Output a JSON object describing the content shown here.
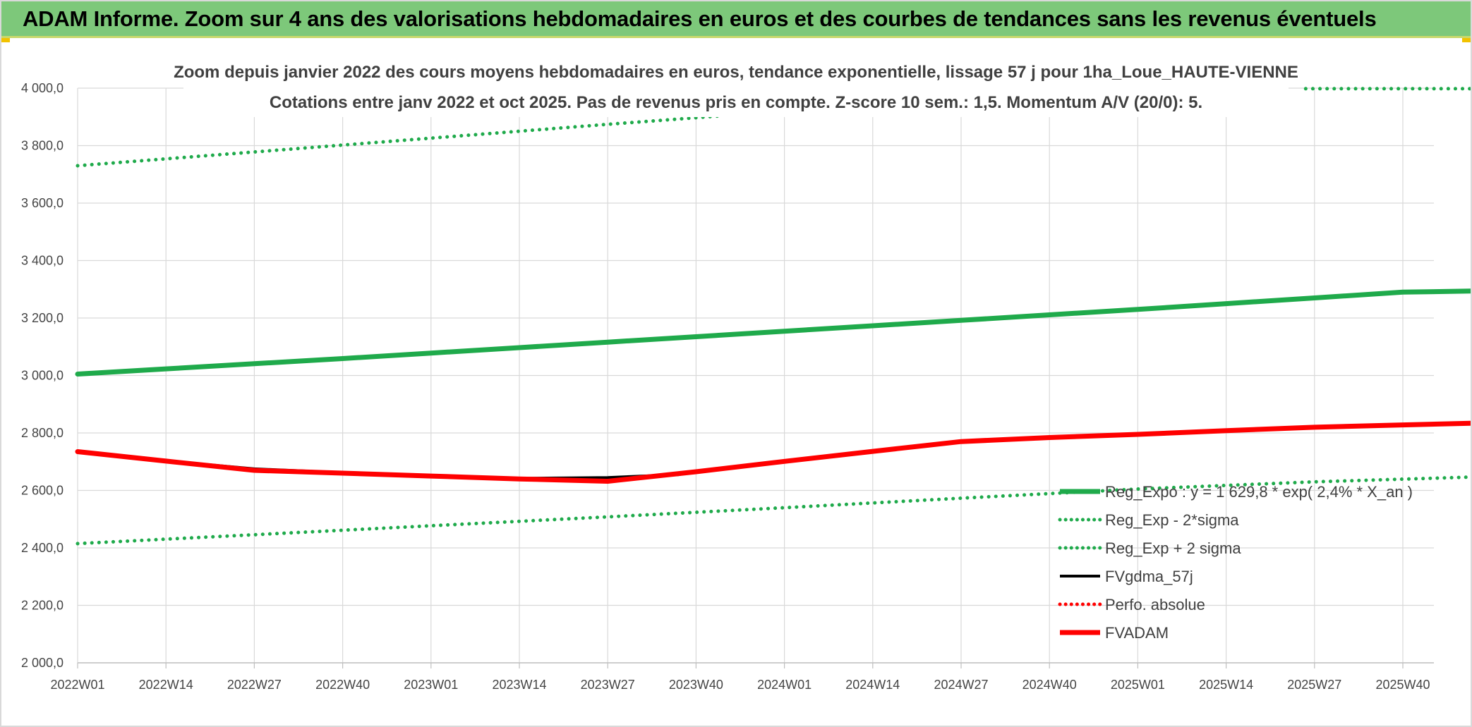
{
  "header": {
    "title": "ADAM Informe. Zoom sur 4 ans des valorisations hebdomadaires en euros et des courbes de tendances sans les revenus éventuels"
  },
  "colors": {
    "header_bg": "#7dc87a",
    "reg_expo": "#1faa4b",
    "fvgdma": "#000000",
    "fvadam": "#ff0000",
    "grid": "#d9d9d9"
  },
  "chart_data": {
    "type": "line",
    "title_line1": "Zoom depuis janvier 2022 des cours moyens hebdomadaires en euros, tendance exponentielle, lissage 57 j pour 1ha_Loue_HAUTE-VIENNE",
    "title_line2": "Cotations entre janv 2022 et oct 2025. Pas de revenus pris en compte. Z-score 10 sem.: 1,5. Momentum A/V (20/0): 5.",
    "ylim": [
      2000,
      4000
    ],
    "yticks": [
      2000,
      2200,
      2400,
      2600,
      2800,
      3000,
      3200,
      3400,
      3600,
      3800,
      4000
    ],
    "ytick_labels": [
      "2 000,0",
      "2 200,0",
      "2 400,0",
      "2 600,0",
      "2 800,0",
      "3 000,0",
      "3 200,0",
      "3 400,0",
      "3 600,0",
      "3 800,0",
      "4 000,0"
    ],
    "categories": [
      "2022W01",
      "2022W14",
      "2022W27",
      "2022W40",
      "2023W01",
      "2023W14",
      "2023W27",
      "2023W40",
      "2024W01",
      "2024W14",
      "2024W27",
      "2024W40",
      "2025W01",
      "2025W14",
      "2025W27",
      "2025W40"
    ],
    "x_extent": 16.37,
    "series": [
      {
        "name": "Reg_Expo : y = 1 629,8 * exp( 2,4% *  X_an )",
        "style": "solid-thick",
        "color": "#1faa4b",
        "x": [
          0,
          1,
          2,
          3,
          4,
          5,
          6,
          7,
          8,
          9,
          10,
          11,
          12,
          13,
          14,
          15,
          16.37
        ],
        "y": [
          3005,
          3023,
          3041,
          3059,
          3078,
          3097,
          3116,
          3135,
          3154,
          3173,
          3192,
          3211,
          3230,
          3250,
          3270,
          3290,
          3297
        ]
      },
      {
        "name": "Reg_Exp - 2*sigma",
        "style": "dotted",
        "color": "#1faa4b",
        "x": [
          0,
          2,
          4,
          6,
          8,
          10,
          12,
          14,
          16.37
        ],
        "y": [
          2415,
          2446,
          2477,
          2508,
          2540,
          2573,
          2605,
          2630,
          2652
        ]
      },
      {
        "name": "Reg_Exp + 2 sigma",
        "style": "dotted",
        "color": "#1faa4b",
        "x": [
          0,
          2,
          4,
          6,
          7.3
        ],
        "y": [
          3730,
          3778,
          3826,
          3874,
          3904
        ],
        "x2": [
          13.9,
          16.37
        ],
        "y2": [
          3998,
          3998
        ]
      },
      {
        "name": "FVgdma_57j",
        "style": "solid",
        "color": "#000000",
        "x": [
          0,
          1,
          2,
          3,
          4,
          5,
          6,
          6.8,
          7,
          8,
          9,
          10,
          11,
          12,
          13,
          14,
          15,
          16.37
        ],
        "y": [
          2735,
          2703,
          2675,
          2662,
          2652,
          2642,
          2645,
          2655,
          2666,
          2701,
          2736,
          2770,
          2784,
          2795,
          2808,
          2820,
          2828,
          2838
        ]
      },
      {
        "name": "Perfo. absolue",
        "style": "dotted",
        "color": "#ff0000",
        "x": [],
        "y": []
      },
      {
        "name": "FVADAM",
        "style": "solid-thick",
        "color": "#ff0000",
        "x": [
          0,
          1,
          2,
          3,
          4,
          5,
          6,
          7,
          8,
          9,
          10,
          11,
          12,
          13,
          14,
          15,
          16.37
        ],
        "y": [
          2735,
          2702,
          2670,
          2660,
          2650,
          2640,
          2632,
          2665,
          2701,
          2736,
          2770,
          2784,
          2795,
          2808,
          2820,
          2828,
          2838
        ]
      }
    ],
    "legend": {
      "position": "bottom-right",
      "entries": [
        "Reg_Expo : y = 1 629,8 * exp( 2,4% *  X_an )",
        "Reg_Exp - 2*sigma",
        "Reg_Exp + 2 sigma",
        "FVgdma_57j",
        "Perfo. absolue",
        "FVADAM"
      ]
    }
  }
}
